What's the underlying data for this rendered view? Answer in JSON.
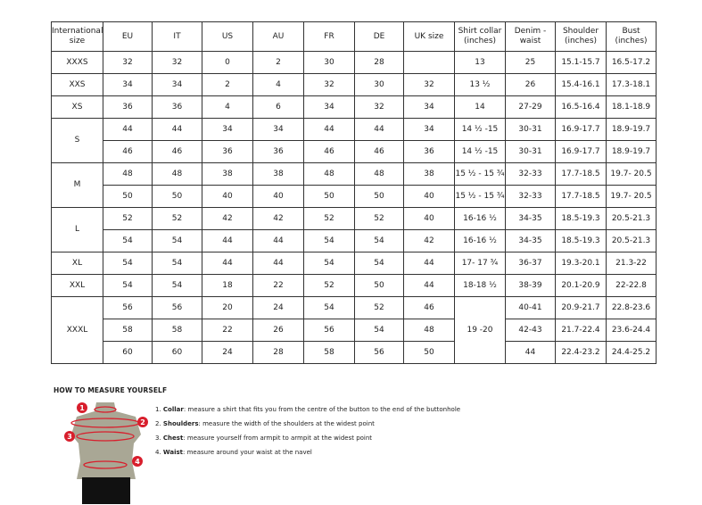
{
  "table": {
    "headers": [
      "International size",
      "EU",
      "IT",
      "US",
      "AU",
      "FR",
      "DE",
      "UK size",
      "Shirt collar (inches)",
      "Denim - waist",
      "Shoulder (inches)",
      "Bust (inches)"
    ],
    "rows": [
      [
        "XXXS",
        "32",
        "32",
        "0",
        "2",
        "30",
        "28",
        "",
        "13",
        "25",
        "15.1-15.7",
        "16.5-17.2"
      ],
      [
        "XXS",
        "34",
        "34",
        "2",
        "4",
        "32",
        "30",
        "32",
        "13 ½",
        "26",
        "15.4-16.1",
        "17.3-18.1"
      ],
      [
        "XS",
        "36",
        "36",
        "4",
        "6",
        "34",
        "32",
        "34",
        "14",
        "27-29",
        "16.5-16.4",
        "18.1-18.9"
      ],
      [
        "S",
        "44",
        "44",
        "34",
        "34",
        "44",
        "44",
        "34",
        "14 ½ -15",
        "30-31",
        "16.9-17.7",
        "18.9-19.7"
      ],
      [
        "",
        "46",
        "46",
        "36",
        "36",
        "46",
        "46",
        "36",
        "14 ½ -15",
        "30-31",
        "16.9-17.7",
        "18.9-19.7"
      ],
      [
        "M",
        "48",
        "48",
        "38",
        "38",
        "48",
        "48",
        "38",
        "15 ½ - 15 ¾",
        "32-33",
        "17.7-18.5",
        "19.7- 20.5"
      ],
      [
        "",
        "50",
        "50",
        "40",
        "40",
        "50",
        "50",
        "40",
        "15 ½ - 15 ¾",
        "32-33",
        "17.7-18.5",
        "19.7- 20.5"
      ],
      [
        "L",
        "52",
        "52",
        "42",
        "42",
        "52",
        "52",
        "40",
        "16-16 ½",
        "34-35",
        "18.5-19.3",
        "20.5-21.3"
      ],
      [
        "",
        "54",
        "54",
        "44",
        "44",
        "54",
        "54",
        "42",
        "16-16 ½",
        "34-35",
        "18.5-19.3",
        "20.5-21.3"
      ],
      [
        "XL",
        "54",
        "54",
        "44",
        "44",
        "54",
        "54",
        "44",
        "17- 17 ¾",
        "36-37",
        "19.3-20.1",
        "21.3-22"
      ],
      [
        "XXL",
        "54",
        "54",
        "18",
        "22",
        "52",
        "50",
        "44",
        "18-18 ½",
        "38-39",
        "20.1-20.9",
        "22-22.8"
      ],
      [
        "XXXL",
        "56",
        "56",
        "20",
        "24",
        "54",
        "52",
        "46",
        "19 -20",
        "40-41",
        "20.9-21.7",
        "22.8-23.6"
      ],
      [
        "",
        "58",
        "58",
        "22",
        "26",
        "56",
        "54",
        "48",
        "",
        "42-43",
        "21.7-22.4",
        "23.6-24.4"
      ],
      [
        "",
        "60",
        "60",
        "24",
        "28",
        "58",
        "56",
        "50",
        "",
        "44",
        "22.4-23.2",
        "24.4-25.2"
      ]
    ]
  },
  "measure": {
    "title": "HOW TO MEASURE YOURSELF",
    "steps": [
      {
        "num": "1.",
        "label": "Collar",
        "text": ": measure a shirt that fits you from the centre of the button to the end of the buttonhole"
      },
      {
        "num": "2.",
        "label": "Shoulders",
        "text": ": measure the width of the shoulders at the widest point"
      },
      {
        "num": "3.",
        "label": "Chest",
        "text": ": measure yourself from armpit to armpit at the widest point"
      },
      {
        "num": "4.",
        "label": "Waist",
        "text": ": measure around your waist at the navel"
      }
    ],
    "markers": [
      "1",
      "2",
      "3",
      "4"
    ],
    "accent": "#d81e2c"
  }
}
